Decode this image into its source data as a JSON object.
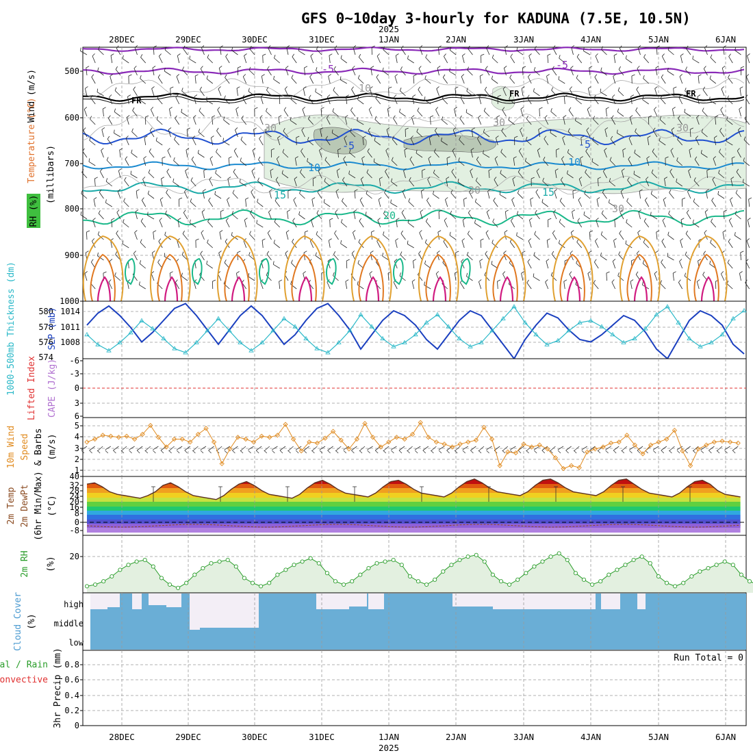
{
  "title": "GFS 0~10day 3-hourly for KADUNA (7.5E, 10.5N)",
  "year_label": "2025",
  "dates": [
    "28DEC",
    "29DEC",
    "30DEC",
    "31DEC",
    "1JAN",
    "2JAN",
    "3JAN",
    "4JAN",
    "5JAN",
    "6JAN"
  ],
  "panels": {
    "upper": {
      "label_wind": "Wind (m/s)",
      "label_temp": "Temperature (°C)",
      "label_rh": "RH (%)",
      "label_pressure": "(millibars)",
      "pressure_ticks": [
        "500",
        "600",
        "700",
        "800",
        "900",
        "1000"
      ],
      "contour_labels": [
        "-5",
        "-5",
        "FR",
        "FR",
        "FR",
        "-5",
        "-5",
        "10",
        "10",
        "15",
        "15",
        "20",
        "30",
        "30",
        "10",
        "30",
        "30",
        "30"
      ]
    },
    "slp": {
      "label_thick": "1000-500mb Thickness (dm)",
      "label_slp": "SLP (mb)",
      "thickness_ticks": [
        "580",
        "578",
        "576",
        "574"
      ],
      "slp_ticks": [
        "1014",
        "1011",
        "1008"
      ]
    },
    "stability": {
      "label_li": "Lifted Index",
      "label_cape": "CAPE (J/kg)",
      "ticks": [
        "-6",
        "-3",
        "0",
        "3",
        "6"
      ]
    },
    "wind10m": {
      "label_title": "10m Wind",
      "label_speed": "Speed",
      "label_barbs": "& Barbs",
      "label_unit": "(m/s)",
      "ticks": [
        "5",
        "4",
        "3",
        "2",
        "1",
        "40"
      ]
    },
    "temp2m": {
      "label_temp": "2m Temp",
      "label_dew": "2m DewPt",
      "label_minmax": "(6hr Min/Max)",
      "label_unit": "(°C)",
      "ticks": [
        "32",
        "28",
        "24",
        "20",
        "16",
        "8",
        "0",
        "-8"
      ]
    },
    "rh2m": {
      "label": "2m RH",
      "label_unit": "(%)",
      "ticks": [
        "20"
      ]
    },
    "cloud": {
      "label": "Cloud Cover",
      "label_unit": "(%)",
      "levels": [
        "high",
        "middle",
        "low"
      ]
    },
    "precip": {
      "label_total": "Total / Rain",
      "label_conv": "Convective",
      "label_precip": "3hr Precip (mm)",
      "ticks": [
        "0.8",
        "0.6",
        "0.4",
        "0.2",
        "0"
      ],
      "run_total": "Run Total = 0"
    }
  },
  "colors": {
    "slp": "#1a3fbf",
    "thickness": "#2ab8c8",
    "wind_speed": "#e08a1e",
    "rh_fill": "#e3f0e0",
    "rh_line": "#2a9d2a",
    "cloud": "#6aaed6",
    "cloud_high": "#f3eef6",
    "li_zero": "#e03030"
  },
  "chart_data": [
    {
      "type": "line",
      "name": "2m RH",
      "x_start": "27DEC 12Z",
      "x_step_hours": 3,
      "ylabel": "2m RH (%)",
      "ylim": [
        0,
        35
      ],
      "series": [
        {
          "values": [
            4,
            5,
            7,
            10,
            14,
            17,
            19,
            20,
            16,
            9,
            5,
            3,
            6,
            11,
            15,
            18,
            19,
            20,
            16,
            9,
            6,
            4,
            6,
            11,
            14,
            17,
            19,
            21,
            18,
            12,
            7,
            5,
            7,
            11,
            15,
            18,
            19,
            20,
            17,
            10,
            7,
            5,
            8,
            13,
            17,
            20,
            22,
            23,
            19,
            11,
            7,
            5,
            8,
            12,
            16,
            19,
            22,
            24,
            20,
            12,
            8,
            5,
            7,
            11,
            14,
            17,
            20,
            22,
            18,
            10,
            6,
            4,
            6,
            10,
            13,
            15,
            17,
            19,
            17,
            11,
            7,
            5,
            7,
            10,
            13,
            15,
            17,
            18,
            16,
            10,
            6,
            4,
            6,
            9,
            11,
            14,
            16,
            18
          ]
        }
      ]
    },
    {
      "type": "line",
      "name": "SLP",
      "ylabel": "SLP (mb)",
      "ylim": [
        1004,
        1016
      ],
      "series": [
        {
          "values": [
            1011,
            1013.5,
            1015,
            1013,
            1010.5,
            1007.5,
            1009.5,
            1012,
            1014.5,
            1015.5,
            1013,
            1010,
            1007,
            1010,
            1013,
            1015,
            1013,
            1010,
            1007,
            1009,
            1012,
            1014.5,
            1015.5,
            1013,
            1010,
            1006,
            1009,
            1012,
            1014,
            1013,
            1011,
            1008,
            1006,
            1009,
            1012,
            1014,
            1013,
            1010,
            1007,
            1004,
            1008,
            1011,
            1013.5,
            1012.5,
            1010,
            1008,
            1007.5,
            1009,
            1011,
            1013,
            1012,
            1009.5,
            1006,
            1004,
            1008,
            1012,
            1014,
            1013,
            1011,
            1007,
            1005
          ]
        }
      ]
    },
    {
      "type": "line",
      "name": "10m Wind Speed",
      "ylabel": "Speed (m/s)",
      "ylim": [
        0,
        6
      ],
      "series": [
        {
          "values": [
            3.5,
            3.8,
            4.2,
            4.1,
            4.0,
            4.1,
            3.8,
            4.3,
            5.2,
            4.0,
            3.0,
            3.8,
            3.8,
            3.5,
            4.3,
            4.9,
            3.5,
            1.3,
            2.8,
            4.0,
            3.8,
            3.5,
            4.1,
            4.0,
            4.2,
            5.3,
            3.8,
            2.6,
            3.5,
            3.4,
            3.9,
            4.6,
            3.7,
            2.8,
            3.8,
            5.4,
            4.0,
            3.0,
            3.5,
            4.0,
            3.8,
            4.3,
            5.5,
            4.0,
            3.5,
            3.3,
            3.0,
            3.3,
            3.5,
            3.7,
            5.0,
            3.8,
            1.1,
            2.5,
            2.4,
            3.3,
            3.0,
            3.2,
            2.8,
            1.9,
            0.8,
            1.1,
            0.9,
            2.5,
            2.8,
            3.0,
            3.4,
            3.5,
            4.2,
            3.2,
            2.3,
            3.2,
            3.5,
            3.8,
            4.7,
            2.6,
            1.1,
            2.8,
            3.2,
            3.5,
            3.6,
            3.5,
            3.4
          ]
        }
      ]
    },
    {
      "type": "line",
      "name": "2m Temp",
      "ylabel": "Temp (°C)",
      "ylim": [
        -10,
        36
      ],
      "series": [
        {
          "values": [
            30,
            31,
            28,
            24,
            22,
            21,
            20,
            19,
            21,
            24,
            29,
            31,
            28,
            24,
            21,
            20,
            19,
            18,
            21,
            26,
            30,
            32,
            29,
            25,
            22,
            21,
            20,
            19,
            22,
            27,
            31,
            33,
            30,
            26,
            23,
            22,
            21,
            20,
            23,
            28,
            32,
            33,
            30,
            26,
            23,
            22,
            21,
            20,
            23,
            28,
            32,
            34,
            31,
            27,
            24,
            23,
            22,
            21,
            24,
            29,
            33,
            34,
            31,
            27,
            24,
            23,
            22,
            21,
            24,
            29,
            33,
            34,
            30,
            26,
            23,
            22,
            21,
            20,
            23,
            28,
            32,
            33,
            30,
            25,
            22,
            21,
            20
          ]
        }
      ]
    }
  ]
}
